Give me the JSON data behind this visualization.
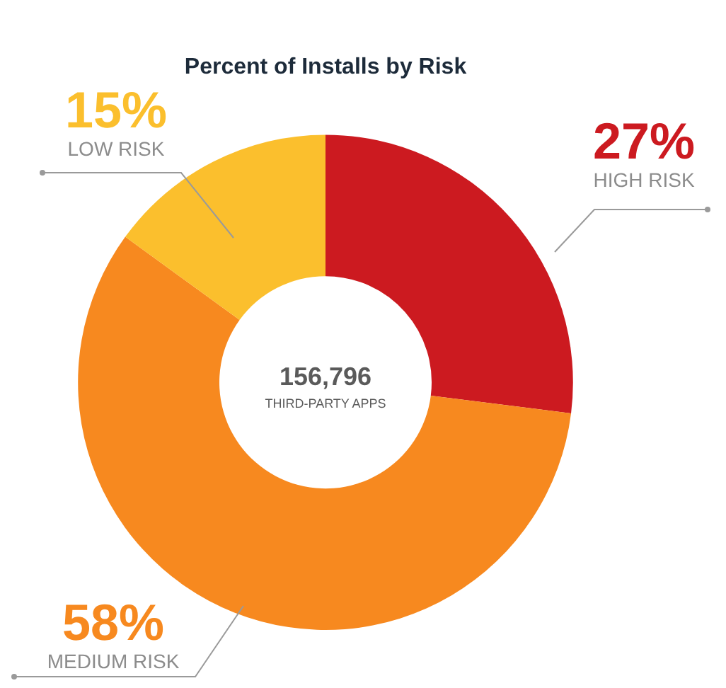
{
  "chart_data": {
    "type": "donut",
    "title": "Percent of Installs by Risk",
    "categories": [
      "HIGH RISK",
      "MEDIUM RISK",
      "LOW RISK"
    ],
    "values": [
      27,
      58,
      15
    ],
    "colors": [
      "#cc1a20",
      "#f7891f",
      "#fbbf2d"
    ],
    "value_labels": [
      "27%",
      "58%",
      "15%"
    ],
    "annotations": [
      "156,796",
      "THIRD-PARTY APPS"
    ],
    "legend": false
  }
}
